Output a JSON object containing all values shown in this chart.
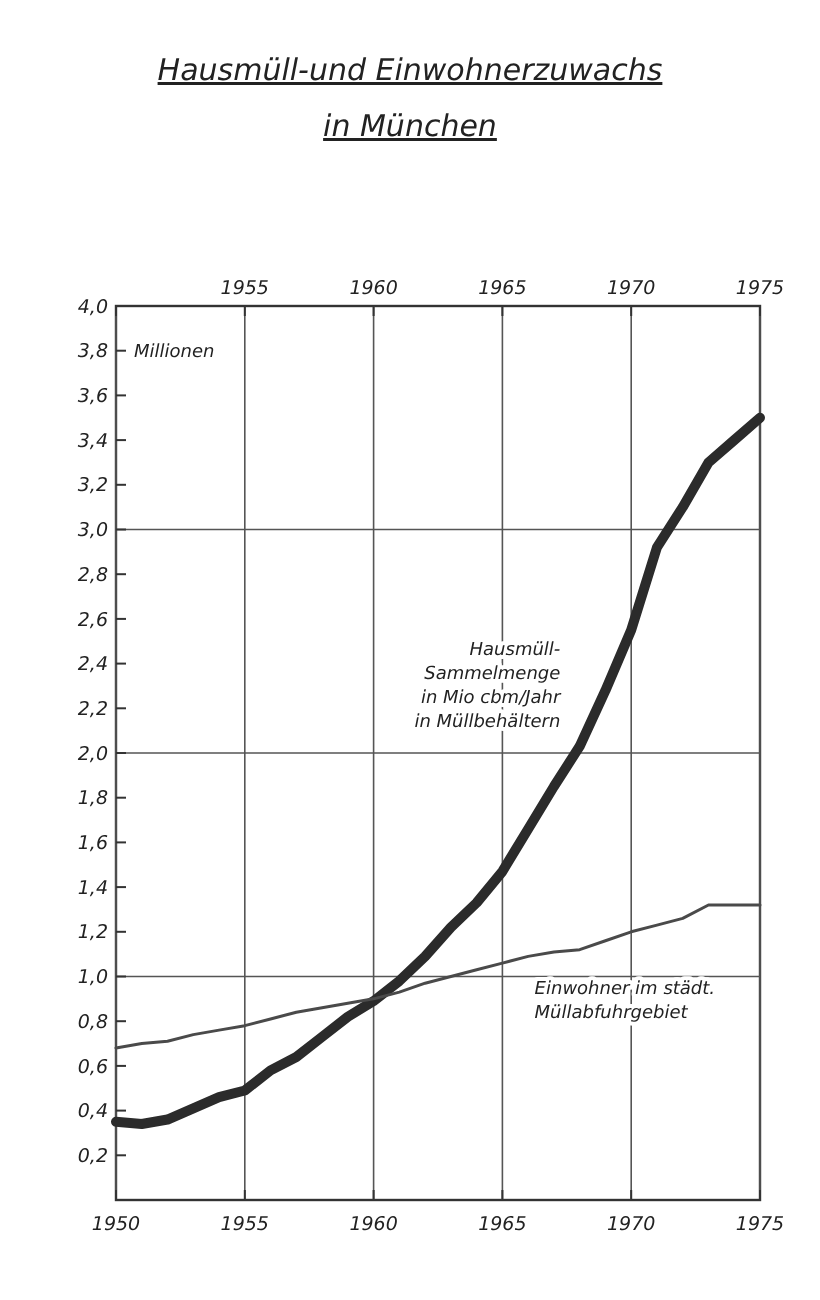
{
  "chart_data": {
    "type": "line",
    "title": "Hausmüll-und Einwohnerzuwachs\nin München",
    "ylabel": "Millionen",
    "x": [
      1950,
      1951,
      1952,
      1953,
      1954,
      1955,
      1956,
      1957,
      1958,
      1959,
      1960,
      1961,
      1962,
      1963,
      1964,
      1965,
      1966,
      1967,
      1968,
      1969,
      1970,
      1971,
      1972,
      1973,
      1974,
      1975
    ],
    "series": [
      {
        "name": "Hausmüll-\nSammelmenge\nin Mio cbm/Jahr\nin Müllbehältern",
        "color": "#2b2b2b",
        "values": [
          0.35,
          0.34,
          0.36,
          0.41,
          0.46,
          0.49,
          0.58,
          0.64,
          0.73,
          0.82,
          0.89,
          0.98,
          1.09,
          1.22,
          1.33,
          1.47,
          1.66,
          1.85,
          2.03,
          2.28,
          2.55,
          2.92,
          3.1,
          3.3,
          3.4,
          3.5
        ]
      },
      {
        "name": "Einwohner im städt.\nMüllabfuhrgebiet",
        "color": "#4a4a4a",
        "values": [
          0.68,
          0.7,
          0.71,
          0.74,
          0.76,
          0.78,
          0.81,
          0.84,
          0.86,
          0.88,
          0.9,
          0.93,
          0.97,
          1.0,
          1.03,
          1.06,
          1.09,
          1.11,
          1.12,
          1.16,
          1.2,
          1.23,
          1.26,
          1.32,
          1.32,
          1.32
        ]
      }
    ],
    "xlim": [
      1950,
      1975
    ],
    "xticks": [
      1950,
      1955,
      1960,
      1965,
      1970,
      1975
    ],
    "x2lim": [
      1950,
      1975
    ],
    "x2ticks": [
      {
        "value": 1950,
        "label": null
      },
      1955,
      1960,
      1965,
      1970,
      1975
    ],
    "ylim": [
      0,
      4
    ],
    "yticks": [
      {
        "value": 0.2,
        "label": "0,2"
      },
      {
        "value": 0.4,
        "label": "0,4"
      },
      {
        "value": 0.6,
        "label": "0,6"
      },
      {
        "value": 0.8,
        "label": "0,8"
      },
      {
        "value": 1,
        "label": "1,0"
      },
      {
        "value": 1.2,
        "label": "1,2"
      },
      {
        "value": 1.4,
        "label": "1,4"
      },
      {
        "value": 1.6,
        "label": "1,6"
      },
      {
        "value": 1.8,
        "label": "1,8"
      },
      {
        "value": 2,
        "label": "2,0"
      },
      {
        "value": 2.2,
        "label": "2,2"
      },
      {
        "value": 2.4,
        "label": "2,4"
      },
      {
        "value": 2.6,
        "label": "2,6"
      },
      {
        "value": 2.8,
        "label": "2,8"
      },
      {
        "value": 3,
        "label": "3,0"
      },
      {
        "value": 3.2,
        "label": "3,2"
      },
      {
        "value": 3.4,
        "label": "3,4"
      },
      {
        "value": 3.6,
        "label": "3,6"
      },
      {
        "value": 3.8,
        "label": "3,8"
      },
      {
        "value": 4,
        "label": "4,0"
      }
    ],
    "grid": "x",
    "ref_lines": [
      {
        "axis": "y",
        "value": 1,
        "label": null
      },
      {
        "axis": "y",
        "value": 2,
        "label": null
      },
      {
        "axis": "y",
        "value": 3,
        "label": null
      }
    ]
  }
}
